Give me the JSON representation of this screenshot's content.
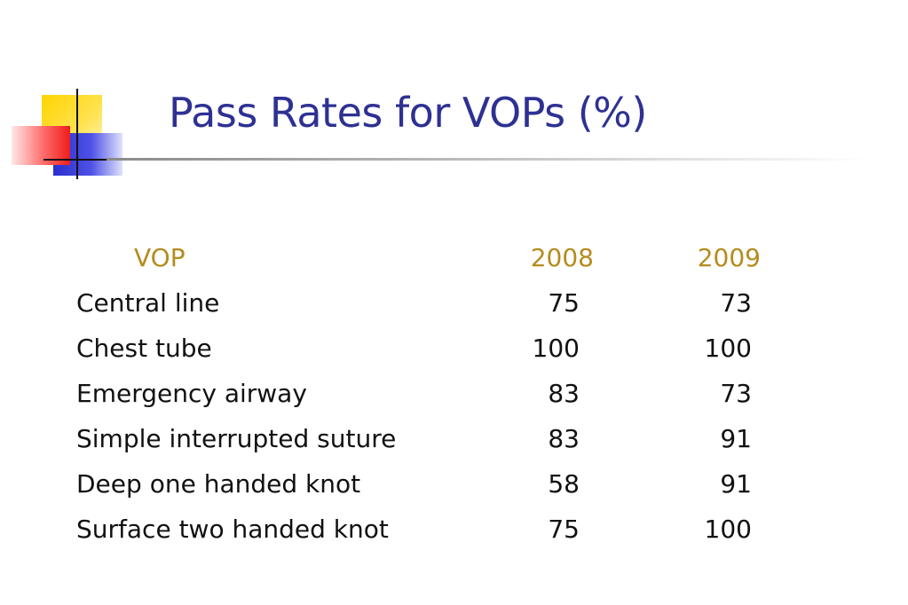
{
  "slide": {
    "title": "Pass Rates for VOPs (%)"
  },
  "table": {
    "headers": [
      "VOP",
      "2008",
      "2009"
    ],
    "rows": [
      {
        "name": "Central line",
        "y2008": "75",
        "y2009": "73"
      },
      {
        "name": "Chest tube",
        "y2008": "100",
        "y2009": "100"
      },
      {
        "name": "Emergency airway",
        "y2008": "83",
        "y2009": "73"
      },
      {
        "name": "Simple interrupted suture",
        "y2008": "83",
        "y2009": "91"
      },
      {
        "name": "Deep one handed knot",
        "y2008": "58",
        "y2009": "91"
      },
      {
        "name": "Surface two handed knot",
        "y2008": "75",
        "y2009": "100"
      }
    ]
  },
  "colors": {
    "title": "#2e3192",
    "header": "#b48c1e",
    "body_text": "#111111"
  }
}
